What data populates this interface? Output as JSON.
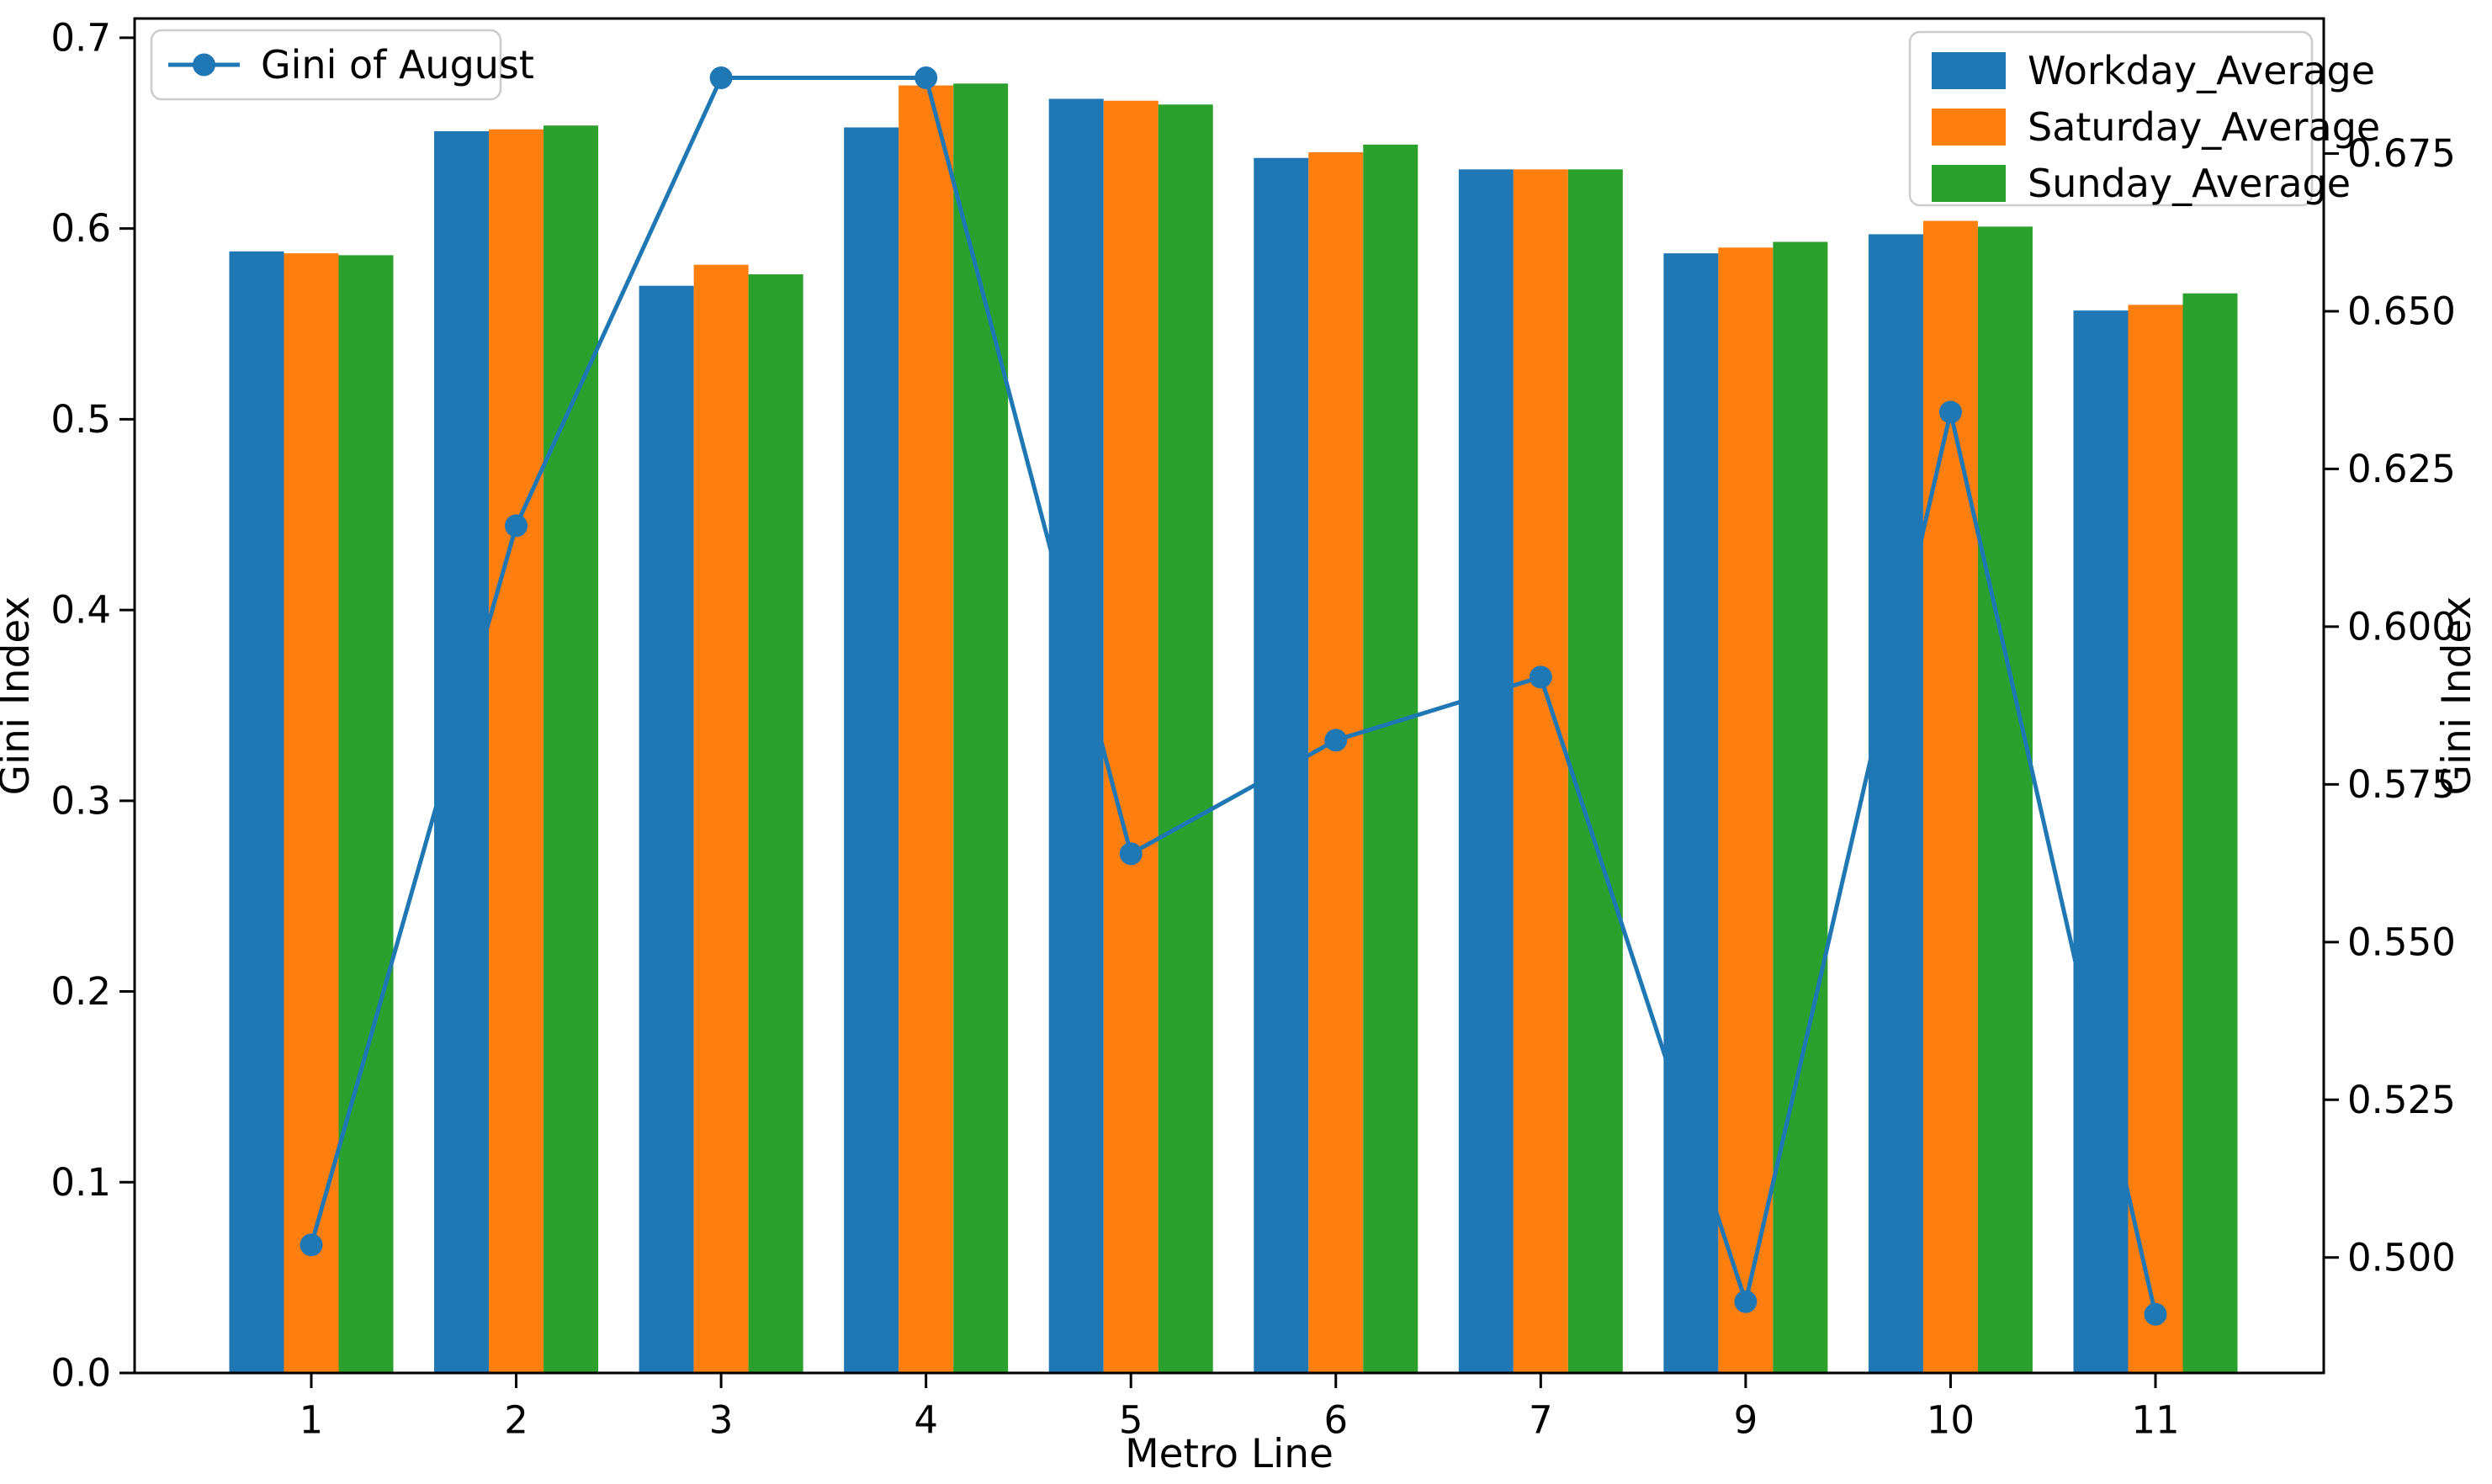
{
  "chart_data": {
    "type": "bar",
    "categories": [
      "1",
      "2",
      "3",
      "4",
      "5",
      "6",
      "7",
      "9",
      "10",
      "11"
    ],
    "series": [
      {
        "name": "Workday_Average",
        "color": "#1f77b4",
        "axis": "left",
        "values": [
          0.588,
          0.651,
          0.57,
          0.653,
          0.668,
          0.637,
          0.631,
          0.587,
          0.597,
          0.557
        ]
      },
      {
        "name": "Saturday_Average",
        "color": "#ff7f0e",
        "axis": "left",
        "values": [
          0.587,
          0.652,
          0.581,
          0.675,
          0.667,
          0.64,
          0.631,
          0.59,
          0.604,
          0.56
        ]
      },
      {
        "name": "Sunday_Average",
        "color": "#2ca02c",
        "axis": "left",
        "values": [
          0.586,
          0.654,
          0.576,
          0.676,
          0.665,
          0.644,
          0.631,
          0.593,
          0.601,
          0.566
        ]
      }
    ],
    "line_series": [
      {
        "name": "Gini of August",
        "color": "#1f77b4",
        "axis": "right",
        "values": [
          0.502,
          0.616,
          0.687,
          0.687,
          0.564,
          0.582,
          0.592,
          0.493,
          0.634,
          0.491
        ]
      }
    ],
    "title": "",
    "xlabel": "Metro Line",
    "ylabel_left": "Gini Index",
    "ylabel_right": "Gini Index",
    "axes": {
      "left": {
        "min": 0.0,
        "max": 0.7101,
        "ticks": [
          0.0,
          0.1,
          0.2,
          0.3,
          0.4,
          0.5,
          0.6,
          0.7
        ],
        "decimals": 1
      },
      "right": {
        "min": 0.4817,
        "max": 0.6964,
        "ticks": [
          0.5,
          0.525,
          0.55,
          0.575,
          0.6,
          0.625,
          0.65,
          0.675
        ],
        "decimals": 3
      }
    },
    "grid": false,
    "legend_line_position": "upper left",
    "legend_bars_position": "upper right",
    "colors": {
      "spine": "#000000",
      "text": "#000000",
      "legend_edge": "#cccccc",
      "background": "#ffffff"
    }
  }
}
